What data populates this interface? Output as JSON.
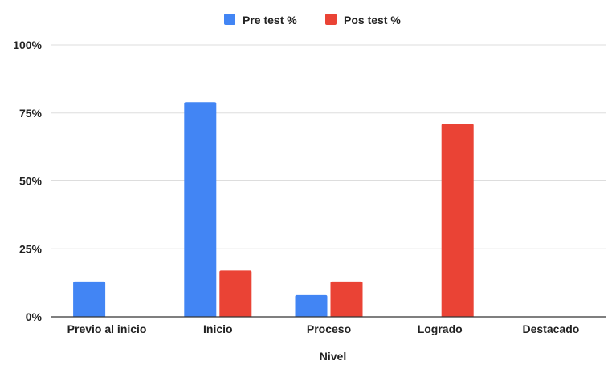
{
  "chart_data": {
    "type": "bar",
    "categories": [
      "Previo al inicio",
      "Inicio",
      "Proceso",
      "Logrado",
      "Destacado"
    ],
    "series": [
      {
        "name": "Pre test %",
        "values": [
          13,
          79,
          8,
          0,
          0
        ],
        "color": "#4285F4"
      },
      {
        "name": "Pos test %",
        "values": [
          0,
          17,
          13,
          71,
          0
        ],
        "color": "#EA4335"
      }
    ],
    "xlabel": "Nivel",
    "ylabel": "",
    "ylim": [
      0,
      100
    ],
    "yticks": [
      {
        "value": 0,
        "label": "0%"
      },
      {
        "value": 25,
        "label": "25%"
      },
      {
        "value": 50,
        "label": "50%"
      },
      {
        "value": 75,
        "label": "75%"
      },
      {
        "value": 100,
        "label": "100%"
      }
    ],
    "grid": true,
    "legend_position": "top-center"
  }
}
